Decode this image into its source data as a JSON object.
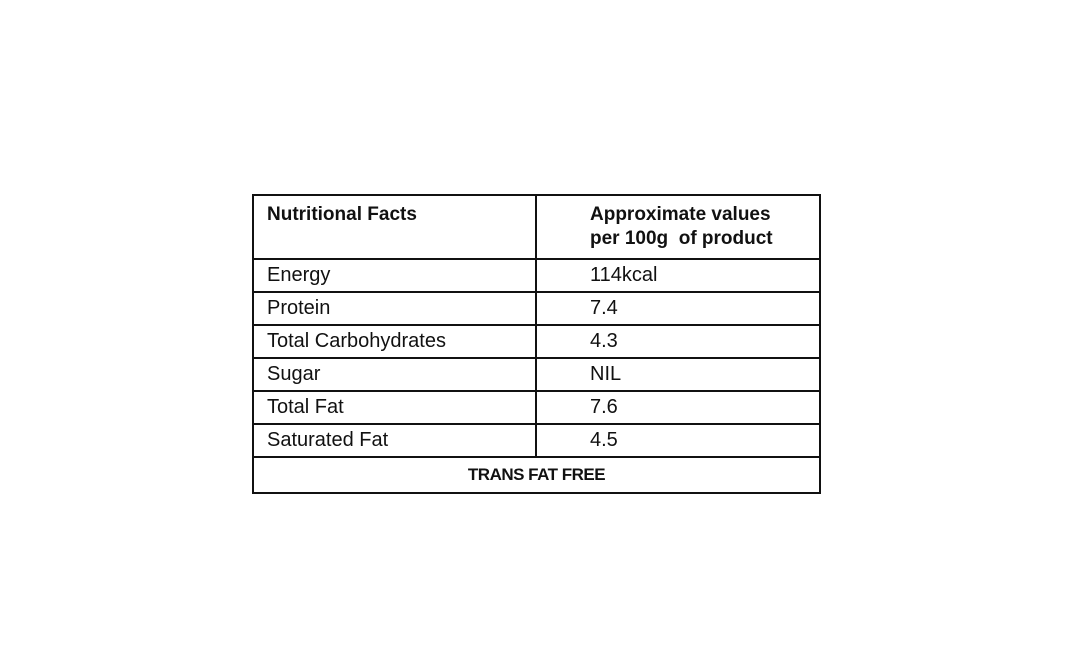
{
  "table": {
    "header": [
      "Nutritional Facts",
      [
        "Approximate values",
        "per 100g  of product"
      ]
    ],
    "rows": [
      [
        "Energy",
        "114kcal"
      ],
      [
        "Protein",
        "7.4"
      ],
      [
        "Total Carbohydrates",
        "4.3"
      ],
      [
        "Sugar",
        "NIL"
      ],
      [
        "Total Fat",
        "7.6"
      ],
      [
        "Saturated Fat",
        "4.5"
      ]
    ],
    "footer": "TRANS FAT FREE"
  }
}
